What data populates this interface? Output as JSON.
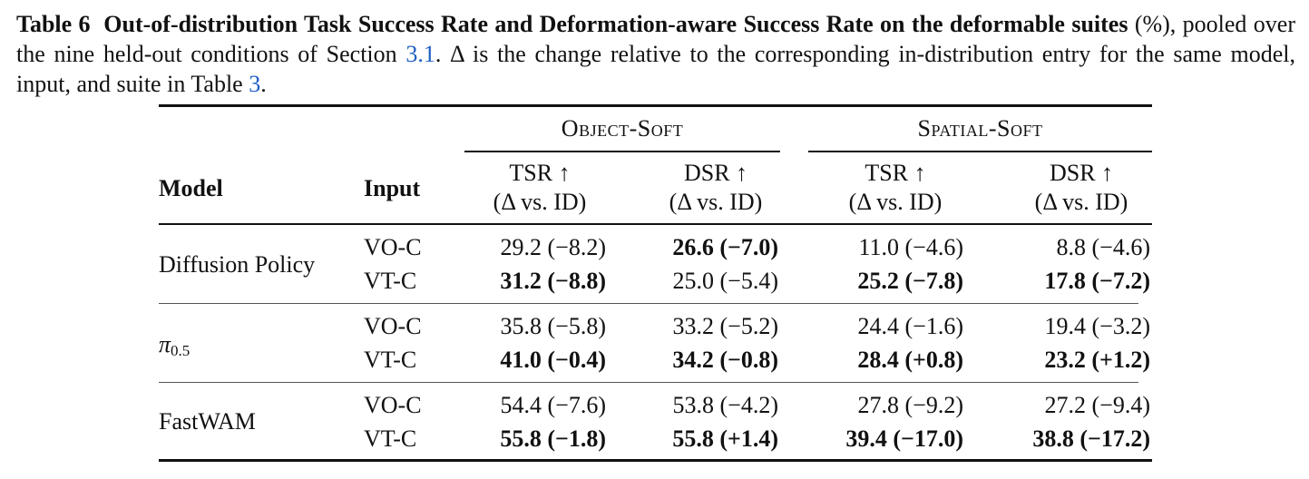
{
  "caption": {
    "label": "Table 6",
    "title": "Out-of-distribution Task Success Rate and Deformation-aware Success Rate on the deformable suites",
    "text_a": " (%), pooled over the nine held-out conditions of Section ",
    "ref_a": "3.1",
    "text_b": ". Δ is the change relative to the corresponding in-distribution entry for the same model, input, and suite in Table ",
    "ref_b": "3",
    "text_c": "."
  },
  "headers": {
    "model": "Model",
    "input": "Input",
    "group_object": "Object-Soft",
    "group_spatial": "Spatial-Soft",
    "tsr": "TSR ↑",
    "dsr": "DSR ↑",
    "delta": "(Δ vs. ID)"
  },
  "rows": [
    {
      "model": "Diffusion Policy",
      "entries": [
        {
          "input": "VO-C",
          "cells": [
            {
              "text": "29.2 (−8.2)",
              "bold": false
            },
            {
              "text": "26.6 (−7.0)",
              "bold": true
            },
            {
              "text": "11.0 (−4.6)",
              "bold": false
            },
            {
              "text": "8.8 (−4.6)",
              "bold": false
            }
          ]
        },
        {
          "input": "VT-C",
          "cells": [
            {
              "text": "31.2 (−8.8)",
              "bold": true
            },
            {
              "text": "25.0 (−5.4)",
              "bold": false
            },
            {
              "text": "25.2 (−7.8)",
              "bold": true
            },
            {
              "text": "17.8 (−7.2)",
              "bold": true
            }
          ]
        }
      ]
    },
    {
      "model_symbol": "π",
      "model_sub": "0.5",
      "entries": [
        {
          "input": "VO-C",
          "cells": [
            {
              "text": "35.8 (−5.8)",
              "bold": false
            },
            {
              "text": "33.2 (−5.2)",
              "bold": false
            },
            {
              "text": "24.4 (−1.6)",
              "bold": false
            },
            {
              "text": "19.4 (−3.2)",
              "bold": false
            }
          ]
        },
        {
          "input": "VT-C",
          "cells": [
            {
              "text": "41.0 (−0.4)",
              "bold": true
            },
            {
              "text": "34.2 (−0.8)",
              "bold": true
            },
            {
              "text": "28.4 (+0.8)",
              "bold": true
            },
            {
              "text": "23.2 (+1.2)",
              "bold": true
            }
          ]
        }
      ]
    },
    {
      "model": "FastWAM",
      "entries": [
        {
          "input": "VO-C",
          "cells": [
            {
              "text": "54.4 (−7.6)",
              "bold": false
            },
            {
              "text": "53.8 (−4.2)",
              "bold": false
            },
            {
              "text": "27.8 (−9.2)",
              "bold": false
            },
            {
              "text": "27.2 (−9.4)",
              "bold": false
            }
          ]
        },
        {
          "input": "VT-C",
          "cells": [
            {
              "text": "55.8 (−1.8)",
              "bold": true
            },
            {
              "text": "55.8 (+1.4)",
              "bold": true
            },
            {
              "text": "39.4 (−17.0)",
              "bold": true
            },
            {
              "text": "38.8 (−17.2)",
              "bold": true
            }
          ]
        }
      ]
    }
  ]
}
